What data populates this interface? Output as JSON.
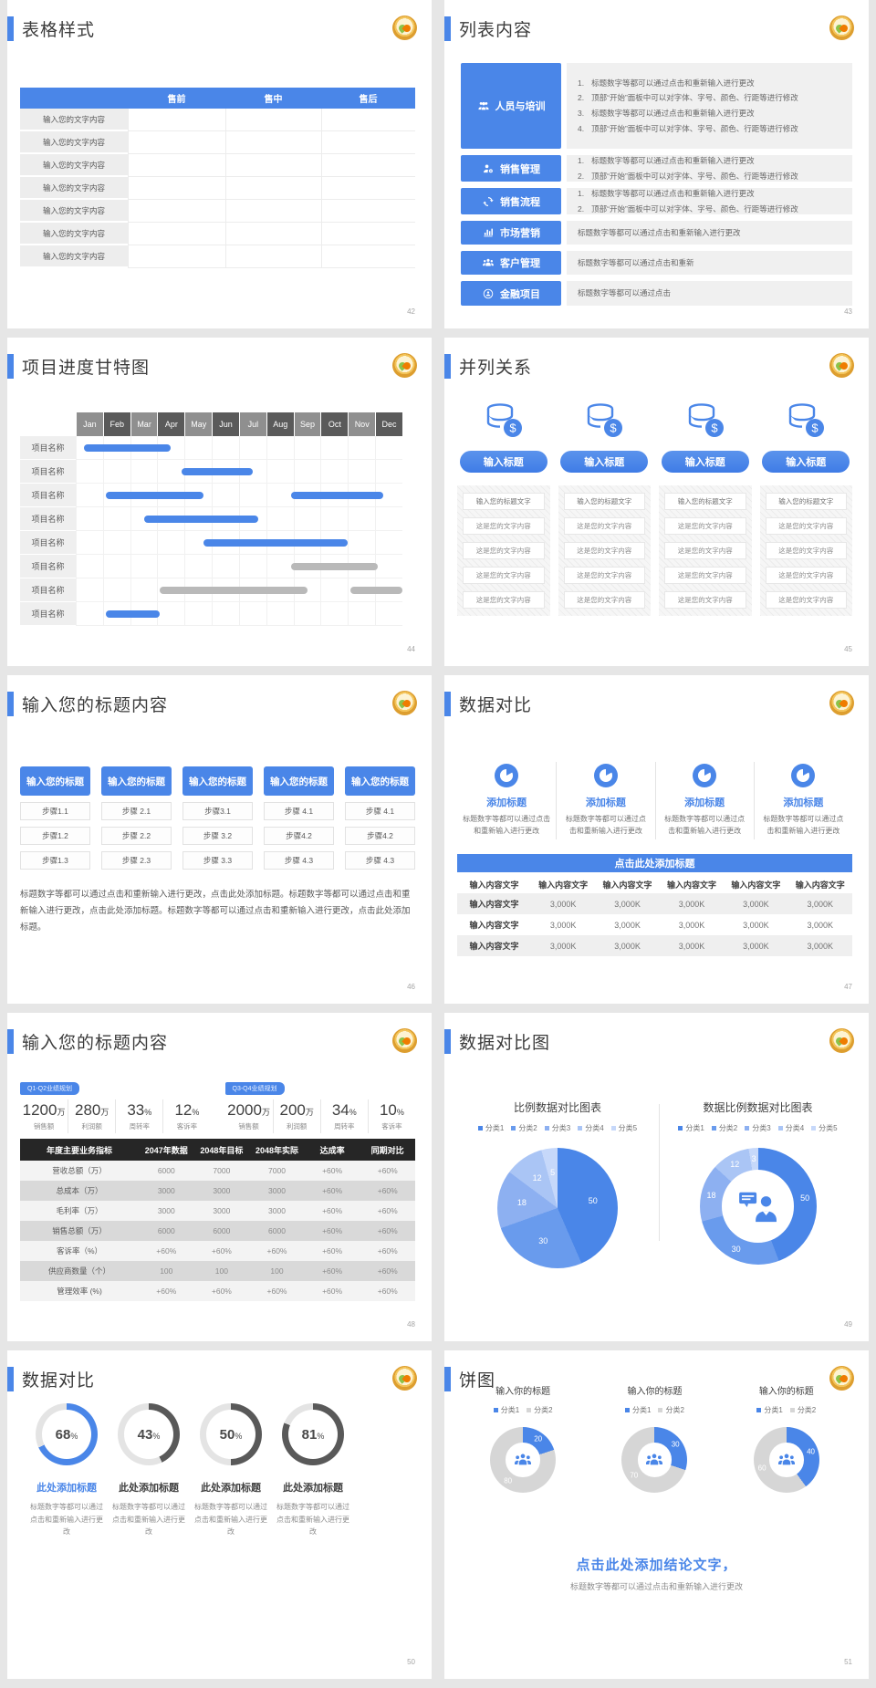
{
  "colors": {
    "accent": "#4a86e8",
    "gantt_gray_bar": "#b9b9b9",
    "table_header_dark": "#262626"
  },
  "slides": [
    {
      "title": "表格样式",
      "page": "42",
      "table": {
        "headers": [
          "",
          "售前",
          "售中",
          "售后"
        ],
        "rows": [
          [
            "输入您的文字内容",
            "",
            "",
            ""
          ],
          [
            "输入您的文字内容",
            "",
            "",
            ""
          ],
          [
            "输入您的文字内容",
            "",
            "",
            ""
          ],
          [
            "输入您的文字内容",
            "",
            "",
            ""
          ],
          [
            "输入您的文字内容",
            "",
            "",
            ""
          ],
          [
            "输入您的文字内容",
            "",
            "",
            ""
          ],
          [
            "输入您的文字内容",
            "",
            "",
            ""
          ]
        ]
      }
    },
    {
      "title": "列表内容",
      "page": "43",
      "items": [
        {
          "label": "人员与培训",
          "icon": "people-training-icon",
          "lines": [
            "标题数字等都可以通过点击和重新输入进行更改",
            "顶部“开始”面板中可以对字体、字号、颜色、行距等进行修改",
            "标题数字等都可以通过点击和重新输入进行更改",
            "顶部“开始”面板中可以对字体、字号、颜色、行距等进行修改"
          ]
        },
        {
          "label": "销售管理",
          "icon": "person-gear-icon",
          "lines": [
            "标题数字等都可以通过点击和重新输入进行更改",
            "顶部“开始”面板中可以对字体、字号、颜色、行距等进行修改"
          ]
        },
        {
          "label": "销售流程",
          "icon": "cycle-arrows-icon",
          "lines": [
            "标题数字等都可以通过点击和重新输入进行更改",
            "顶部“开始”面板中可以对字体、字号、颜色、行距等进行修改"
          ]
        },
        {
          "label": "市场营销",
          "icon": "bar-chart-icon",
          "lines": [
            "标题数字等都可以通过点击和重新输入进行更改"
          ]
        },
        {
          "label": "客户管理",
          "icon": "people-group-icon",
          "lines": [
            "标题数字等都可以通过点击和重新"
          ]
        },
        {
          "label": "金融项目",
          "icon": "finance-person-icon",
          "lines": [
            "标题数字等都可以通过点击"
          ]
        }
      ]
    },
    {
      "title": "项目进度甘特图",
      "page": "44"
    },
    {
      "title": "并列关系",
      "page": "45",
      "button": "输入标题",
      "rows": [
        "输入您的标题文字",
        "这是您的文字内容",
        "这是您的文字内容",
        "这是您的文字内容",
        "这是您的文字内容"
      ]
    },
    {
      "title": "输入您的标题内容",
      "page": "46",
      "header": "输入您的标题",
      "steps": [
        [
          "步骤1.1",
          "步骤1.2",
          "步骤1.3"
        ],
        [
          "步骤 2.1",
          "步骤 2.2",
          "步骤 2.3"
        ],
        [
          "步骤3.1",
          "步骤 3.2",
          "步骤 3.3"
        ],
        [
          "步骤 4.1",
          "步骤4.2",
          "步骤 4.3"
        ],
        [
          "步骤 4.1",
          "步骤4.2",
          "步骤 4.3"
        ]
      ],
      "paragraph": "标题数字等都可以通过点击和重新输入进行更改，点击此处添加标题。标题数字等都可以通过点击和重新输入进行更改，点击此处添加标题。标题数字等都可以通过点击和重新输入进行更改，点击此处添加标题。"
    },
    {
      "title": "数据对比",
      "page": "47",
      "feature_title": "添加标题",
      "feature_desc": "标题数字等都可以通过点击和重新输入进行更改",
      "banner": "点击此处添加标题",
      "table": {
        "headers": [
          "输入内容文字",
          "输入内容文字",
          "输入内容文字",
          "输入内容文字",
          "输入内容文字",
          "输入内容文字"
        ],
        "rows": [
          [
            "输入内容文字",
            "3,000K",
            "3,000K",
            "3,000K",
            "3,000K",
            "3,000K"
          ],
          [
            "输入内容文字",
            "3,000K",
            "3,000K",
            "3,000K",
            "3,000K",
            "3,000K"
          ],
          [
            "输入内容文字",
            "3,000K",
            "3,000K",
            "3,000K",
            "3,000K",
            "3,000K"
          ]
        ]
      }
    },
    {
      "title": "输入您的标题内容",
      "page": "48",
      "groups": [
        {
          "tag": "Q1-Q2业绩规划",
          "stats": [
            {
              "value": "1200",
              "unit": "万",
              "label": "销售额"
            },
            {
              "value": "280",
              "unit": "万",
              "label": "利润额"
            },
            {
              "value": "33",
              "unit": "%",
              "label": "周转率"
            },
            {
              "value": "12",
              "unit": "%",
              "label": "客诉率"
            }
          ]
        },
        {
          "tag": "Q3-Q4业绩规划",
          "stats": [
            {
              "value": "2000",
              "unit": "万",
              "label": "销售额"
            },
            {
              "value": "200",
              "unit": "万",
              "label": "利润额"
            },
            {
              "value": "34",
              "unit": "%",
              "label": "周转率"
            },
            {
              "value": "10",
              "unit": "%",
              "label": "客诉率"
            }
          ]
        }
      ],
      "table": {
        "headers": [
          "年度主要业务指标",
          "2047年数据",
          "2048年目标",
          "2048年实际",
          "达成率",
          "同期对比"
        ],
        "rows": [
          [
            "营收总额（万）",
            "6000",
            "7000",
            "7000",
            "+60%",
            "+60%"
          ],
          [
            "总成本（万）",
            "3000",
            "3000",
            "3000",
            "+60%",
            "+60%"
          ],
          [
            "毛利率（万）",
            "3000",
            "3000",
            "3000",
            "+60%",
            "+60%"
          ],
          [
            "销售总额（万）",
            "6000",
            "6000",
            "6000",
            "+60%",
            "+60%"
          ],
          [
            "客诉率（%）",
            "+60%",
            "+60%",
            "+60%",
            "+60%",
            "+60%"
          ],
          [
            "供应商数量（个）",
            "100",
            "100",
            "100",
            "+60%",
            "+60%"
          ],
          [
            "管理效率 (%)",
            "+60%",
            "+60%",
            "+60%",
            "+60%",
            "+60%"
          ]
        ]
      }
    },
    {
      "title": "数据对比图",
      "page": "49"
    },
    {
      "title": "数据对比",
      "page": "50",
      "items": [
        {
          "value": "68",
          "title": "此处添加标题",
          "desc": "标题数字等都可以通过点击和重新输入进行更改"
        },
        {
          "value": "43",
          "title": "此处添加标题",
          "desc": "标题数字等都可以通过点击和重新输入进行更改"
        },
        {
          "value": "50",
          "title": "此处添加标题",
          "desc": "标题数字等都可以通过点击和重新输入进行更改"
        },
        {
          "value": "81",
          "title": "此处添加标题",
          "desc": "标题数字等都可以通过点击和重新输入进行更改"
        }
      ]
    },
    {
      "title": "饼图",
      "page": "51",
      "conclusion": "点击此处添加结论文字，",
      "conclusion_sub": "标题数字等都可以通过点击和重新输入进行更改"
    }
  ],
  "chart_data": [
    {
      "type": "gantt",
      "title": "项目进度甘特图",
      "row_label": "项目名称",
      "months": [
        "Jan",
        "Feb",
        "Mar",
        "Apr",
        "May",
        "Jun",
        "Jul",
        "Aug",
        "Sep",
        "Oct",
        "Nov",
        "Dec"
      ],
      "header_colors": [
        "#8f8f8f",
        "#5a5a5a"
      ],
      "bar_colors": {
        "blue": "#4a86e8",
        "gray": "#b9b9b9"
      },
      "rows": [
        [
          {
            "start": 0.3,
            "end": 3.5,
            "color": "blue"
          }
        ],
        [
          {
            "start": 3.9,
            "end": 6.5,
            "color": "blue"
          }
        ],
        [
          {
            "start": 1.1,
            "end": 4.7,
            "color": "blue"
          },
          {
            "start": 7.9,
            "end": 11.3,
            "color": "blue"
          }
        ],
        [
          {
            "start": 2.5,
            "end": 6.7,
            "color": "blue"
          }
        ],
        [
          {
            "start": 4.7,
            "end": 10.0,
            "color": "blue"
          }
        ],
        [
          {
            "start": 7.9,
            "end": 11.1,
            "color": "gray"
          }
        ],
        [
          {
            "start": 3.1,
            "end": 8.5,
            "color": "gray"
          },
          {
            "start": 10.1,
            "end": 12.0,
            "color": "gray"
          }
        ],
        [
          {
            "start": 1.1,
            "end": 3.1,
            "color": "blue"
          }
        ]
      ]
    },
    {
      "type": "pie",
      "title": "比例数据对比图表",
      "legend": [
        "分类1",
        "分类2",
        "分类3",
        "分类4",
        "分类5"
      ],
      "values": [
        50,
        30,
        18,
        12,
        5
      ],
      "colors": [
        "#4a86e8",
        "#699bed",
        "#8db0f1",
        "#aac5f5",
        "#c6d8fa"
      ],
      "label_r": 0.6
    },
    {
      "type": "donut",
      "title": "数据比例数据对比图表",
      "legend": [
        "分类1",
        "分类2",
        "分类3",
        "分类4",
        "分类5"
      ],
      "values": [
        50,
        30,
        18,
        12,
        3
      ],
      "colors": [
        "#4a86e8",
        "#699bed",
        "#8db0f1",
        "#aac5f5",
        "#c6d8fa"
      ],
      "label_r": 0.82,
      "hole": 0.62
    },
    {
      "type": "progress-rings",
      "values": [
        68,
        43,
        50,
        81
      ],
      "unit": "%",
      "colors": [
        "#4a86e8",
        "#595959",
        "#595959",
        "#595959"
      ],
      "track": "#e4e4e4"
    },
    {
      "type": "donut",
      "title": "输入你的标题",
      "legend": [
        "分类1",
        "分类2"
      ],
      "values": [
        20,
        80
      ],
      "colors": [
        "#4a86e8",
        "#d6d6d6"
      ],
      "label_r": 0.78,
      "hole": 0.52
    },
    {
      "type": "donut",
      "title": "输入你的标题",
      "legend": [
        "分类1",
        "分类2"
      ],
      "values": [
        30,
        70
      ],
      "colors": [
        "#4a86e8",
        "#d6d6d6"
      ],
      "label_r": 0.78,
      "hole": 0.52
    },
    {
      "type": "donut",
      "title": "输入你的标题",
      "legend": [
        "分类1",
        "分类2"
      ],
      "values": [
        40,
        60
      ],
      "colors": [
        "#4a86e8",
        "#d6d6d6"
      ],
      "label_r": 0.78,
      "hole": 0.52
    }
  ]
}
